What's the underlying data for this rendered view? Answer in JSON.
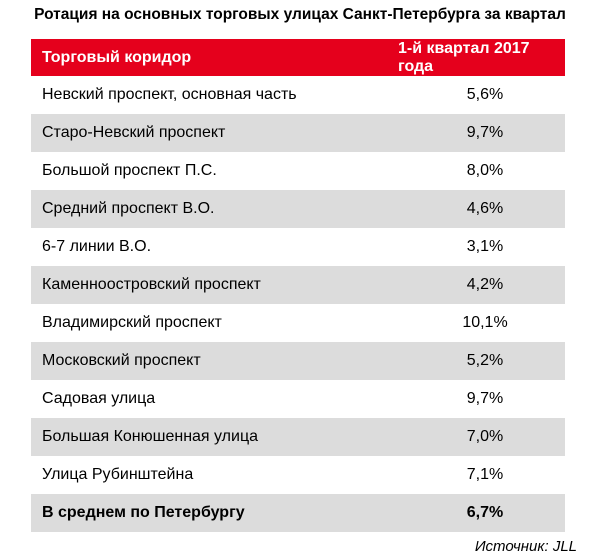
{
  "title": "Ротация на основных торговых улицах Санкт-Петербурга за квартал",
  "table": {
    "headers": [
      "Торговый коридор",
      "1-й квартал 2017 года"
    ],
    "rows": [
      {
        "name": "Невский проспект, основная часть",
        "value": "5,6%"
      },
      {
        "name": "Старо-Невский проспект",
        "value": "9,7%"
      },
      {
        "name": "Большой проспект П.С.",
        "value": "8,0%"
      },
      {
        "name": "Средний проспект В.О.",
        "value": "4,6%"
      },
      {
        "name": "6-7 линии В.О.",
        "value": "3,1%"
      },
      {
        "name": "Каменноостровский проспект",
        "value": "4,2%"
      },
      {
        "name": "Владимирский проспект",
        "value": "10,1%"
      },
      {
        "name": "Московский проспект",
        "value": "5,2%"
      },
      {
        "name": "Садовая улица",
        "value": "9,7%"
      },
      {
        "name": "Большая Конюшенная улица",
        "value": "7,0%"
      },
      {
        "name": "Улица Рубинштейна",
        "value": "7,1%"
      },
      {
        "name": "В среднем по Петербургу",
        "value": "6,7%"
      }
    ]
  },
  "source": "Источник: JLL",
  "colors": {
    "header_bg": "#e5001c",
    "row_shade": "#dcdcdc"
  }
}
